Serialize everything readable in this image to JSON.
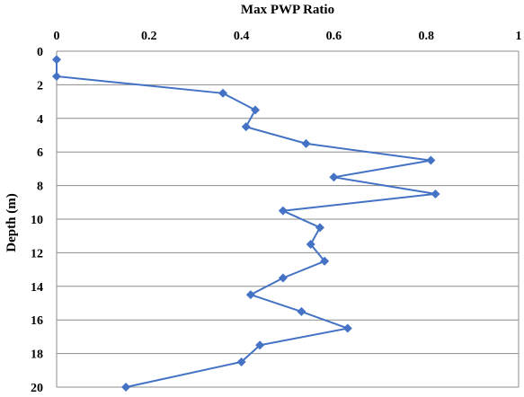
{
  "chart_data": {
    "type": "line",
    "title": "Max PWP Ratio",
    "xlabel": "Max PWP Ratio",
    "ylabel": "Depth (m)",
    "xlim": [
      0,
      1
    ],
    "ylim": [
      0,
      20
    ],
    "y_inverted": true,
    "x_axis_position": "top",
    "xticks": [
      0,
      0.2,
      0.4,
      0.6,
      0.8,
      1
    ],
    "xtick_labels": [
      "0",
      "0.2",
      "0.4",
      "0.6",
      "0.8",
      "1"
    ],
    "yticks": [
      0,
      2,
      4,
      6,
      8,
      10,
      12,
      14,
      16,
      18,
      20
    ],
    "ytick_labels": [
      "0",
      "2",
      "4",
      "6",
      "8",
      "10",
      "12",
      "14",
      "16",
      "18",
      "20"
    ],
    "grid": "horizontal",
    "legend": "none",
    "series_color": "#4472C4",
    "marker": "diamond",
    "points": [
      {
        "x": 0.0,
        "y": 0.5
      },
      {
        "x": 0.0,
        "y": 1.5
      },
      {
        "x": 0.36,
        "y": 2.5
      },
      {
        "x": 0.43,
        "y": 3.5
      },
      {
        "x": 0.41,
        "y": 4.5
      },
      {
        "x": 0.54,
        "y": 5.5
      },
      {
        "x": 0.81,
        "y": 6.5
      },
      {
        "x": 0.6,
        "y": 7.5
      },
      {
        "x": 0.82,
        "y": 8.5
      },
      {
        "x": 0.49,
        "y": 9.5
      },
      {
        "x": 0.57,
        "y": 10.5
      },
      {
        "x": 0.55,
        "y": 11.5
      },
      {
        "x": 0.58,
        "y": 12.5
      },
      {
        "x": 0.49,
        "y": 13.5
      },
      {
        "x": 0.42,
        "y": 14.5
      },
      {
        "x": 0.53,
        "y": 15.5
      },
      {
        "x": 0.63,
        "y": 16.5
      },
      {
        "x": 0.44,
        "y": 17.5
      },
      {
        "x": 0.4,
        "y": 18.5
      },
      {
        "x": 0.15,
        "y": 20.0
      }
    ]
  }
}
